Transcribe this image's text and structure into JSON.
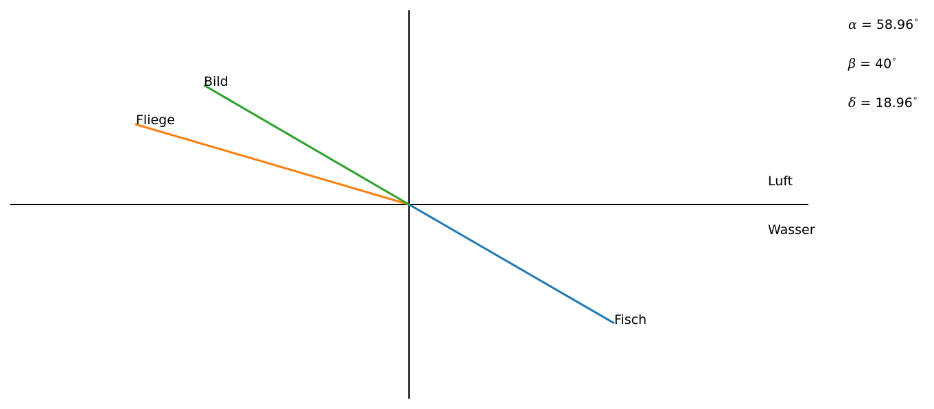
{
  "medium_labels": {
    "upper": "Luft",
    "lower": "Wasser"
  },
  "rays": [
    {
      "name": "Fisch",
      "color": "#1f77b4"
    },
    {
      "name": "Fliege",
      "color": "#ff7f0e"
    },
    {
      "name": "Bild",
      "color": "#2ca02c"
    }
  ],
  "angles": [
    {
      "symbol": "α",
      "value": "58.96",
      "unit": "∘"
    },
    {
      "symbol": "β",
      "value": "40",
      "unit": "∘"
    },
    {
      "symbol": "δ",
      "value": "18.96",
      "unit": "∘"
    }
  ],
  "axis_color": "#000000"
}
